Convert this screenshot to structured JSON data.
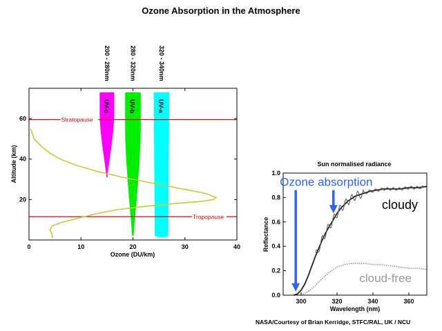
{
  "title": "Ozone Absorption in the Atmosphere",
  "credit": "NASA/Courtesy of Brian Kerridge, STFC/RAL, UK / NCU",
  "colors": {
    "profile": "#c8c83a",
    "level_lines": "#e8000a",
    "uvc": "#ff00ff",
    "uvb": "#00ee00",
    "uva": "#00ffff",
    "arrow": "#2f63e8"
  },
  "chart_data": [
    {
      "type": "line",
      "title": "",
      "xlabel": "Ozone (DU/km)",
      "ylabel": "Altitude (km)",
      "xlim": [
        0,
        40
      ],
      "ylim": [
        0,
        75
      ],
      "xticks": [
        0,
        10,
        20,
        30,
        40
      ],
      "yticks": [
        20,
        40,
        60
      ],
      "series": [
        {
          "type": "line",
          "x": [
            0.3,
            1,
            2.5,
            4,
            6,
            9,
            13,
            18,
            24,
            30,
            34,
            36,
            35.5,
            33,
            28,
            22,
            17,
            13,
            9,
            6,
            4.5,
            4,
            4.5,
            4.5
          ],
          "y": [
            55,
            50,
            46,
            43,
            40,
            37,
            34,
            31,
            28,
            25,
            23,
            21,
            20,
            19,
            18,
            16.5,
            15,
            13,
            10.5,
            8.5,
            7,
            5,
            2.5,
            1
          ]
        }
      ],
      "reference_lines": [
        {
          "label": "Stratopause",
          "y": 59.5
        },
        {
          "label": "Tropopause",
          "y": 11.5
        }
      ],
      "bands": [
        {
          "label": "UV-c",
          "range_label": "200 - 280nm",
          "x_center": 15,
          "y_top": 73,
          "y_bottom": 31,
          "width_top": 2.8,
          "width_bottom": 0.2
        },
        {
          "label": "UV-b",
          "range_label": "280 - 320nm",
          "x_center": 20,
          "y_top": 73,
          "y_bottom": 2,
          "width_top": 3,
          "width_bottom": 0.3
        },
        {
          "label": "UV-a",
          "range_label": "320 - 340nm",
          "x_center": 25.5,
          "y_top": 73,
          "y_bottom": 2,
          "width_top": 3,
          "width_bottom": 2.6
        }
      ]
    },
    {
      "type": "line",
      "title": "Sun normalised radiance",
      "xlabel": "Wavelength (nm)",
      "ylabel": "Reflectance",
      "xlim": [
        290,
        370
      ],
      "ylim": [
        0,
        1.0
      ],
      "xticks": [
        300,
        320,
        340,
        360
      ],
      "yticks": [
        0.0,
        0.2,
        0.4,
        0.6,
        0.8,
        1.0
      ],
      "tick_labels_y": [
        "0.0",
        "0.2",
        "0.4",
        "0.6",
        "0.8",
        "1.0"
      ],
      "series": [
        {
          "name": "cloudy",
          "x": [
            296,
            298,
            300,
            302,
            304,
            306,
            308,
            310,
            312,
            314,
            316,
            318,
            320,
            322,
            324,
            326,
            328,
            330,
            334,
            338,
            342,
            346,
            350,
            355,
            360,
            365,
            370
          ],
          "y": [
            0.0,
            0.01,
            0.04,
            0.09,
            0.16,
            0.24,
            0.32,
            0.39,
            0.46,
            0.52,
            0.57,
            0.62,
            0.67,
            0.71,
            0.74,
            0.77,
            0.79,
            0.81,
            0.83,
            0.85,
            0.86,
            0.87,
            0.87,
            0.87,
            0.88,
            0.88,
            0.89
          ]
        },
        {
          "name": "cloud-free",
          "x": [
            300,
            304,
            308,
            312,
            316,
            320,
            324,
            328,
            332,
            336,
            340,
            345,
            350,
            355,
            360,
            365,
            370
          ],
          "y": [
            0.0,
            0.03,
            0.08,
            0.14,
            0.19,
            0.23,
            0.25,
            0.26,
            0.26,
            0.26,
            0.25,
            0.25,
            0.24,
            0.23,
            0.22,
            0.22,
            0.21
          ]
        }
      ],
      "annotations": [
        {
          "text": "Ozone absorption",
          "x": 314,
          "y": 0.93
        },
        {
          "text": "cloudy",
          "x": 355,
          "y": 0.74
        },
        {
          "text": "cloud-free",
          "x": 347,
          "y": 0.14
        }
      ],
      "arrows": [
        {
          "x": 297,
          "y_from": 0.86,
          "y_to": 0.03
        },
        {
          "x": 318,
          "y_from": 0.86,
          "y_to": 0.67
        }
      ]
    }
  ]
}
